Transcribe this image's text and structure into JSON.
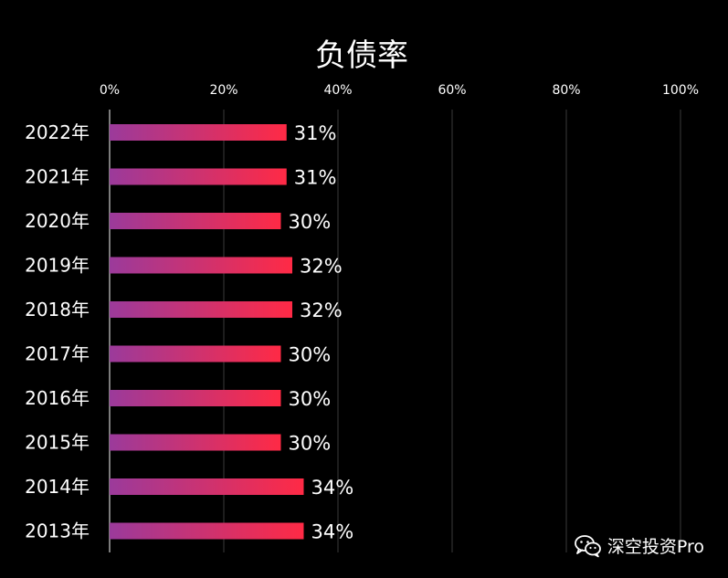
{
  "chart_data": {
    "type": "bar",
    "orientation": "horizontal",
    "title": "负债率",
    "categories": [
      "2022年",
      "2021年",
      "2020年",
      "2019年",
      "2018年",
      "2017年",
      "2016年",
      "2015年",
      "2014年",
      "2013年"
    ],
    "values": [
      31,
      31,
      30,
      32,
      32,
      30,
      30,
      30,
      34,
      34
    ],
    "value_labels": [
      "31%",
      "31%",
      "30%",
      "32%",
      "32%",
      "30%",
      "30%",
      "30%",
      "34%",
      "34%"
    ],
    "xlim": [
      0,
      100
    ],
    "xticks": [
      "0%",
      "20%",
      "40%",
      "60%",
      "80%",
      "100%"
    ],
    "x_axis_position": "top",
    "grid": true,
    "legend": "none",
    "colors": {
      "bar_start": "#9b3a9b",
      "bar_end": "#ff2a45",
      "background": "#000000",
      "grid": "#3a3a3a"
    }
  },
  "watermark": {
    "text": "深空投资Pro",
    "icon": "wechat-icon"
  }
}
